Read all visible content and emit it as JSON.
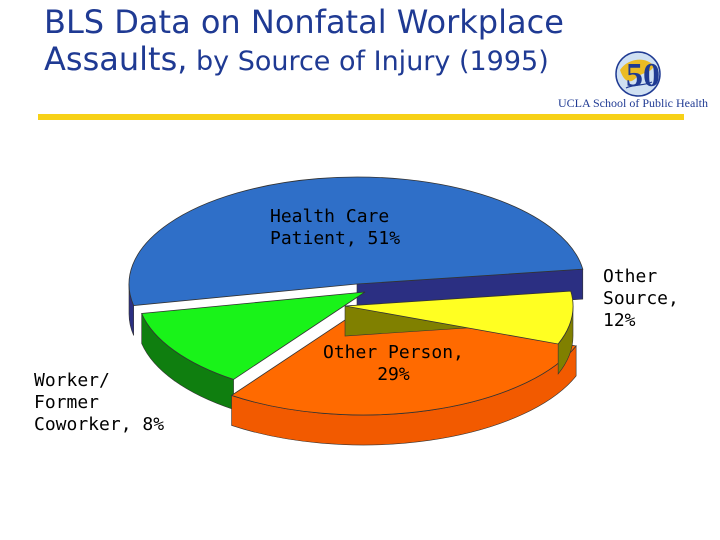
{
  "title": {
    "line1": "BLS Data on Nonfatal Workplace",
    "line2_main": "Assaults,",
    "line2_rest": " by Source of Injury (1995)"
  },
  "logo": {
    "badge_text": "50",
    "caption": "UCLA School of Public Health"
  },
  "colors": {
    "title": "#1f3a93",
    "rule": "#f7d117"
  },
  "chart_data": {
    "type": "pie",
    "title": "",
    "slices": [
      {
        "label": "Health Care Patient",
        "value": 51,
        "display": "Health Care\nPatient, 51%",
        "color": "#2f6fc8",
        "side_color": "#2b2f82"
      },
      {
        "label": "Other Source",
        "value": 12,
        "display": "Other\nSource,\n12%",
        "color": "#19f319",
        "side_color": "#0f7e0f"
      },
      {
        "label": "Other Person",
        "value": 29,
        "display": "Other Person,\n29%",
        "color": "#ff6a00",
        "side_color": "#f25a00"
      },
      {
        "label": "Worker/ Former Coworker",
        "value": 8,
        "display": "Worker/\nFormer\nCoworker, 8%",
        "color": "#ffff22",
        "side_color": "#808000"
      }
    ]
  }
}
